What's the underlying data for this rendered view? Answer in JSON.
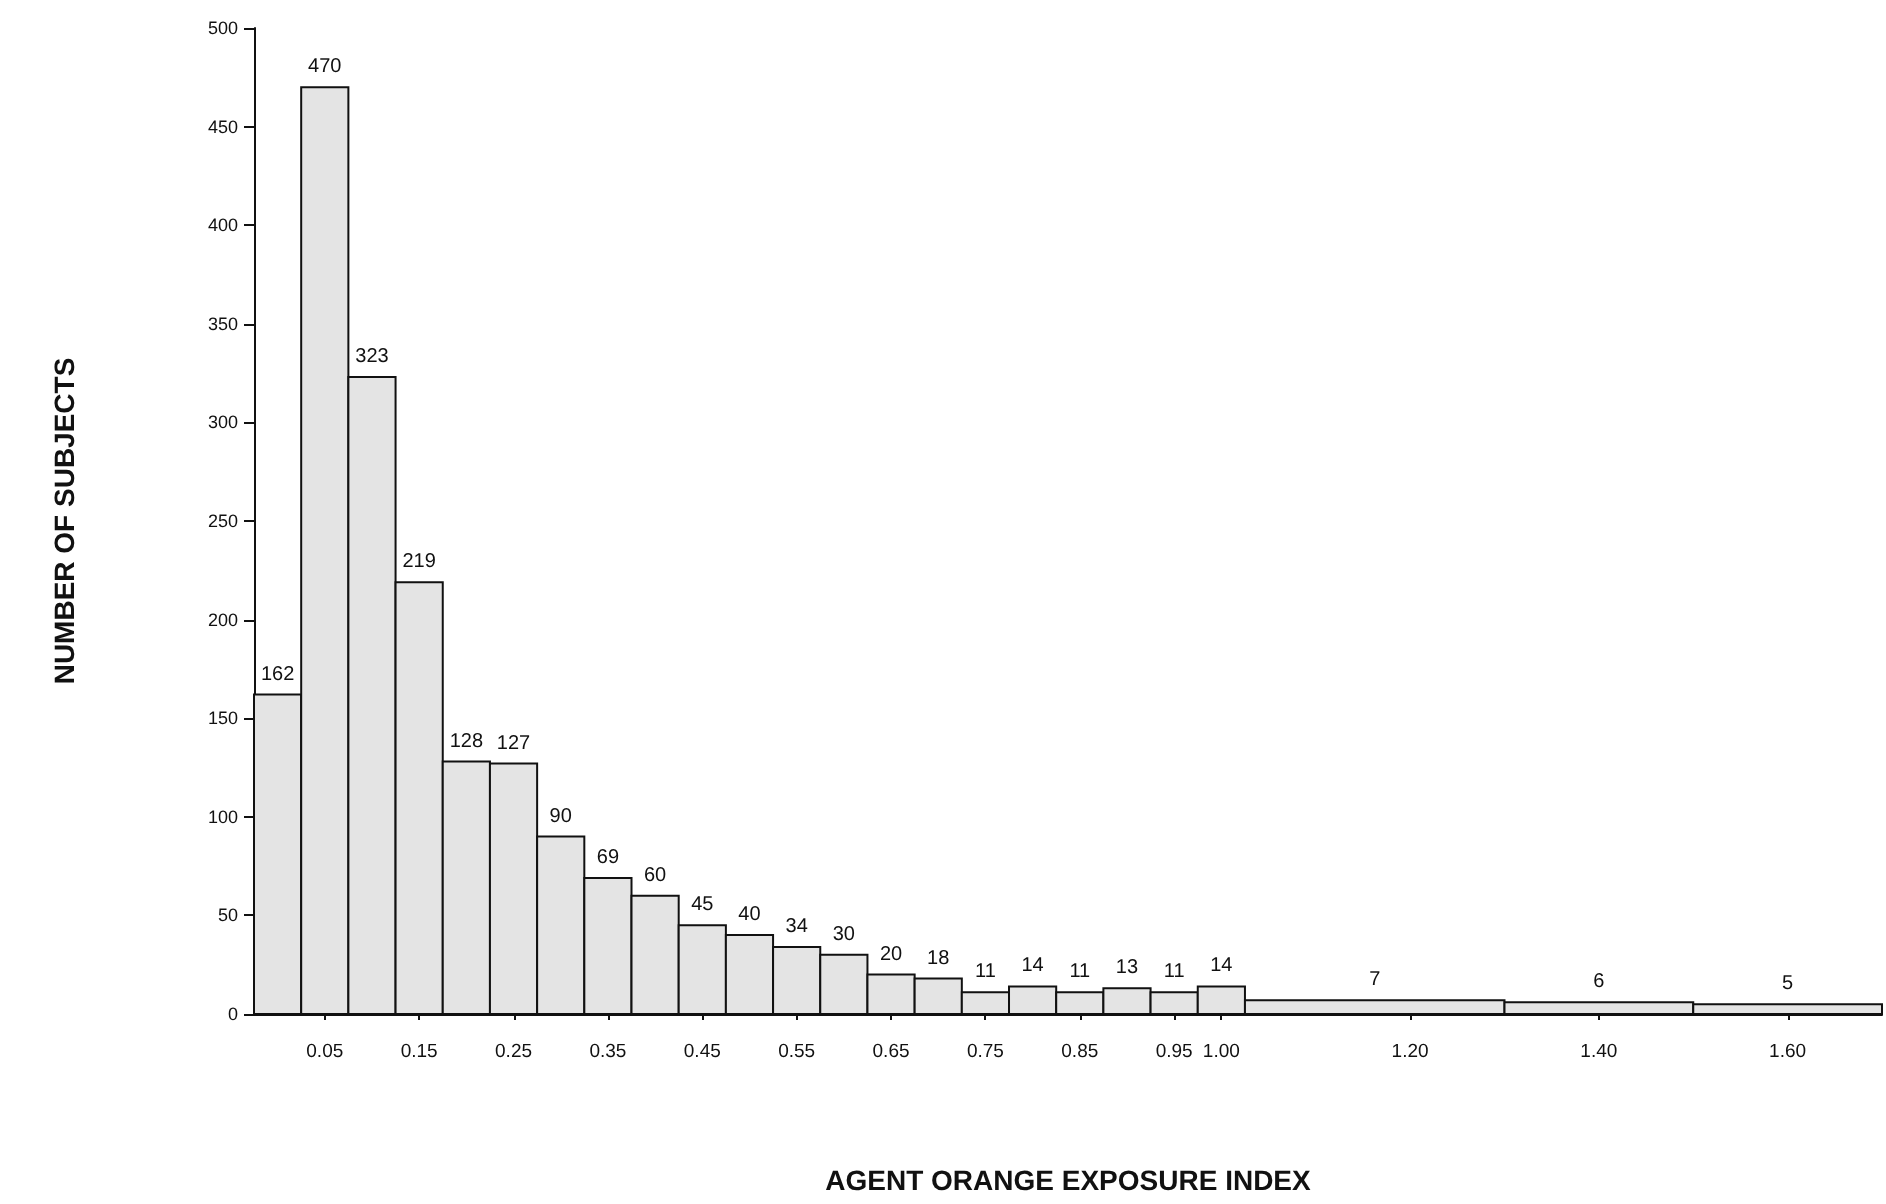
{
  "chart_data": {
    "type": "histogram",
    "xlabel": "AGENT ORANGE EXPOSURE INDEX",
    "ylabel": "NUMBER OF SUBJECTS",
    "bins": [
      -0.025,
      0.025,
      0.075,
      0.125,
      0.175,
      0.225,
      0.275,
      0.325,
      0.375,
      0.425,
      0.475,
      0.525,
      0.575,
      0.625,
      0.675,
      0.725,
      0.775,
      0.825,
      0.875,
      0.925,
      0.975,
      1.025,
      1.3,
      1.5,
      1.7
    ],
    "values": [
      162,
      470,
      323,
      219,
      128,
      127,
      90,
      69,
      60,
      45,
      40,
      34,
      30,
      20,
      18,
      11,
      14,
      11,
      13,
      11,
      14,
      7,
      6,
      5
    ],
    "color": "#e4e4e4",
    "data_labels": true,
    "xlim": [
      -0.025,
      1.7
    ],
    "xticks": [
      0.05,
      0.15,
      0.25,
      0.35,
      0.45,
      0.55,
      0.65,
      0.75,
      0.85,
      0.95,
      {
        "value": 1.0,
        "label": "1.00"
      },
      {
        "value": 1.2,
        "label": "1.20"
      },
      {
        "value": 1.4,
        "label": "1.40"
      },
      {
        "value": 1.6,
        "label": "1.60"
      }
    ],
    "ylim": [
      0,
      500
    ],
    "yticks": [
      0,
      50,
      100,
      150,
      200,
      250,
      300,
      350,
      400,
      450,
      500
    ],
    "grid": false
  }
}
